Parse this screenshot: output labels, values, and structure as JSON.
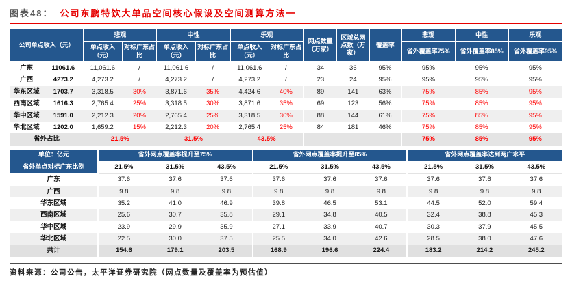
{
  "title": {
    "prefix": "图表48：",
    "text": "公司东鹏特饮大单品空间核心假设及空间测算方法一"
  },
  "colors": {
    "header_blue": "#24578E",
    "accent_red": "#FF0000",
    "title_red": "#E60000",
    "stripe_gray": "#EFEFEF",
    "summary_gray": "#E4E4E4"
  },
  "top_table": {
    "header": {
      "income_label": "公司单点收入（元）",
      "scenarios": [
        "悲观",
        "中性",
        "乐观"
      ],
      "sub_income": "单点收入（元）",
      "sub_ratio": "对标广东占比",
      "outlets": "网点数量（万家）",
      "total_outlets": "区域总网点数（万家）",
      "coverage": "覆盖率",
      "coverage_scenarios": [
        "悲观",
        "中性",
        "乐观"
      ],
      "coverage_subs": [
        "省外覆盖率75%",
        "省外覆盖率85%",
        "省外覆盖率95%"
      ]
    },
    "rows": [
      {
        "region": "广东",
        "income": "11061.6",
        "pess_income": "11,061.6",
        "pess_ratio": "/",
        "neut_income": "11,061.6",
        "neut_ratio": "/",
        "opt_income": "11,061.6",
        "opt_ratio": "/",
        "outlets": "34",
        "total_outlets": "36",
        "coverage": "95%",
        "cov": [
          "95%",
          "95%",
          "95%"
        ],
        "red": false
      },
      {
        "region": "广西",
        "income": "4273.2",
        "pess_income": "4,273.2",
        "pess_ratio": "/",
        "neut_income": "4,273.2",
        "neut_ratio": "/",
        "opt_income": "4,273.2",
        "opt_ratio": "/",
        "outlets": "23",
        "total_outlets": "24",
        "coverage": "95%",
        "cov": [
          "95%",
          "95%",
          "95%"
        ],
        "red": false
      },
      {
        "region": "华东区域",
        "income": "1703.7",
        "pess_income": "3,318.5",
        "pess_ratio": "30%",
        "neut_income": "3,871.6",
        "neut_ratio": "35%",
        "opt_income": "4,424.6",
        "opt_ratio": "40%",
        "outlets": "89",
        "total_outlets": "141",
        "coverage": "63%",
        "cov": [
          "75%",
          "85%",
          "95%"
        ],
        "red": true
      },
      {
        "region": "西南区域",
        "income": "1616.3",
        "pess_income": "2,765.4",
        "pess_ratio": "25%",
        "neut_income": "3,318.5",
        "neut_ratio": "30%",
        "opt_income": "3,871.6",
        "opt_ratio": "35%",
        "outlets": "69",
        "total_outlets": "123",
        "coverage": "56%",
        "cov": [
          "75%",
          "85%",
          "95%"
        ],
        "red": true
      },
      {
        "region": "华中区域",
        "income": "1591.0",
        "pess_income": "2,212.3",
        "pess_ratio": "20%",
        "neut_income": "2,765.4",
        "neut_ratio": "25%",
        "opt_income": "3,318.5",
        "opt_ratio": "30%",
        "outlets": "88",
        "total_outlets": "144",
        "coverage": "61%",
        "cov": [
          "75%",
          "85%",
          "95%"
        ],
        "red": true
      },
      {
        "region": "华北区域",
        "income": "1202.0",
        "pess_income": "1,659.2",
        "pess_ratio": "15%",
        "neut_income": "2,212.3",
        "neut_ratio": "20%",
        "opt_income": "2,765.4",
        "opt_ratio": "25%",
        "outlets": "84",
        "total_outlets": "181",
        "coverage": "46%",
        "cov": [
          "75%",
          "85%",
          "95%"
        ],
        "red": true
      }
    ],
    "summary": {
      "label": "省外占比",
      "values": [
        "21.5%",
        "31.5%",
        "43.5%"
      ],
      "cov": [
        "75%",
        "85%",
        "95%"
      ]
    }
  },
  "bottom_table": {
    "unit_label": "单位：亿元",
    "ratio_label": "省外单点对标广东比例",
    "groups": [
      "省外网点覆盖率提升至75%",
      "省外网点覆盖率提升至85%",
      "省外网点覆盖率达到两广水平"
    ],
    "ratios": [
      "21.5%",
      "31.5%",
      "43.5%",
      "21.5%",
      "31.5%",
      "43.5%",
      "21.5%",
      "31.5%",
      "43.5%"
    ],
    "rows": [
      {
        "region": "广东",
        "values": [
          "37.6",
          "37.6",
          "37.6",
          "37.6",
          "37.6",
          "37.6",
          "37.6",
          "37.6",
          "37.6"
        ]
      },
      {
        "region": "广西",
        "values": [
          "9.8",
          "9.8",
          "9.8",
          "9.8",
          "9.8",
          "9.8",
          "9.8",
          "9.8",
          "9.8"
        ]
      },
      {
        "region": "华东区域",
        "values": [
          "35.2",
          "41.0",
          "46.9",
          "39.8",
          "46.5",
          "53.1",
          "44.5",
          "52.0",
          "59.4"
        ]
      },
      {
        "region": "西南区域",
        "values": [
          "25.6",
          "30.7",
          "35.8",
          "29.1",
          "34.8",
          "40.5",
          "32.4",
          "38.8",
          "45.3"
        ]
      },
      {
        "region": "华中区域",
        "values": [
          "23.9",
          "29.9",
          "35.9",
          "27.1",
          "33.9",
          "40.7",
          "30.3",
          "37.9",
          "45.5"
        ]
      },
      {
        "region": "华北区域",
        "values": [
          "22.5",
          "30.0",
          "37.5",
          "25.5",
          "34.0",
          "42.6",
          "28.5",
          "38.0",
          "47.6"
        ]
      }
    ],
    "total": {
      "label": "共计",
      "values": [
        "154.6",
        "179.1",
        "203.5",
        "168.9",
        "196.6",
        "224.4",
        "183.2",
        "214.2",
        "245.2"
      ]
    }
  },
  "footer": "资料来源：公司公告，太平洋证券研究院（网点数量及覆盖率为预估值）"
}
